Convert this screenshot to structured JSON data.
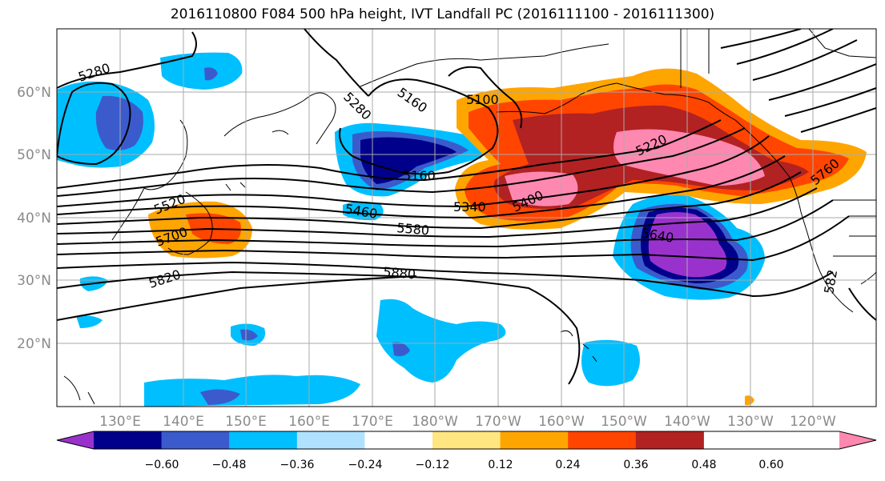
{
  "title": "2016110800 F084 500 hPa height, IVT Landfall PC (2016111100 - 2016111300)",
  "lat_ticks": [
    "60°N",
    "50°N",
    "40°N",
    "30°N",
    "20°N"
  ],
  "lon_ticks": [
    "130°E",
    "140°E",
    "150°E",
    "160°E",
    "170°E",
    "180°W",
    "170°W",
    "160°W",
    "150°W",
    "140°W",
    "130°W",
    "120°W"
  ],
  "colorbar": {
    "ticks": [
      "−0.60",
      "−0.48",
      "−0.36",
      "−0.24",
      "−0.12",
      "0.12",
      "0.24",
      "0.36",
      "0.48",
      "0.60"
    ],
    "colors": [
      "#9932cc",
      "#00008b",
      "#3b5bcc",
      "#00bfff",
      "#b0e2ff",
      "#ffffff",
      "#ffe680",
      "#ffa500",
      "#ff4500",
      "#b22222",
      "#ff88b0"
    ]
  },
  "contour_labels": [
    "5280",
    "5280",
    "5160",
    "5100",
    "5220",
    "5160",
    "5520",
    "5460",
    "5340",
    "5400",
    "5580",
    "5700",
    "5640",
    "5760",
    "5820",
    "5880",
    "582"
  ]
}
